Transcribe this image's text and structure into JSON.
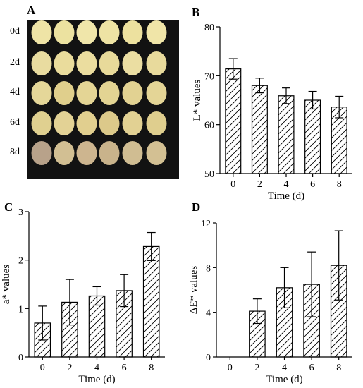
{
  "panels": {
    "A": {
      "letter": "A",
      "rows": [
        "0d",
        "2d",
        "4d",
        "6d",
        "8d"
      ]
    },
    "B": {
      "letter": "B"
    },
    "C": {
      "letter": "C"
    },
    "D": {
      "letter": "D"
    }
  },
  "chart_data": [
    {
      "id": "B",
      "type": "bar",
      "categories": [
        "0",
        "2",
        "4",
        "6",
        "8"
      ],
      "values": [
        71.4,
        68.0,
        65.9,
        65.0,
        63.6
      ],
      "errors": [
        2.1,
        1.5,
        1.6,
        1.8,
        2.2
      ],
      "xlabel": "Time (d)",
      "ylabel": "L* values",
      "ylim": [
        50,
        80
      ],
      "yticks": [
        "50",
        "60",
        "70",
        "80"
      ],
      "pattern": "diagonal hatch"
    },
    {
      "id": "C",
      "type": "bar",
      "categories": [
        "0",
        "2",
        "4",
        "6",
        "8"
      ],
      "values": [
        0.7,
        1.13,
        1.26,
        1.37,
        2.28
      ],
      "errors": [
        0.35,
        0.47,
        0.19,
        0.33,
        0.29
      ],
      "xlabel": "Time (d)",
      "ylabel": "a* values",
      "ylim": [
        0,
        3
      ],
      "yticks": [
        "0",
        "1",
        "2",
        "3"
      ],
      "pattern": "diagonal hatch"
    },
    {
      "id": "D",
      "type": "bar",
      "categories": [
        "0",
        "2",
        "4",
        "6",
        "8"
      ],
      "values": [
        0,
        4.1,
        6.2,
        6.5,
        8.2
      ],
      "errors": [
        0,
        1.1,
        1.8,
        2.9,
        3.1
      ],
      "xlabel": "Time (d)",
      "ylabel": "ΔE* values",
      "ylim": [
        0,
        12
      ],
      "yticks": [
        "0",
        "4",
        "8",
        "12"
      ],
      "pattern": "diagonal hatch"
    }
  ]
}
